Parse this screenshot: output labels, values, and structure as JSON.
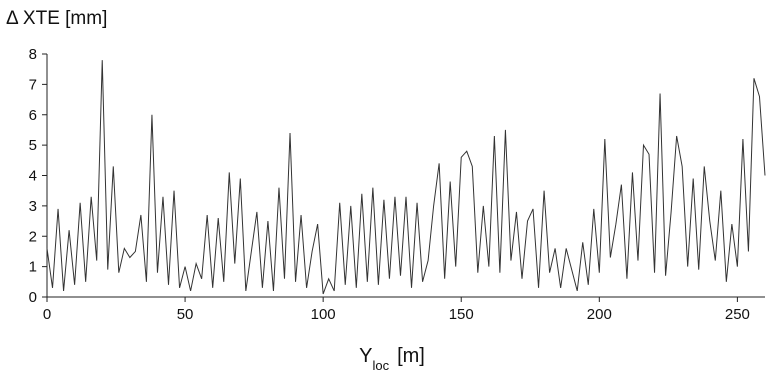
{
  "chart_data": {
    "type": "line",
    "ylabel": "Δ XTE [mm]",
    "xlabel": "Y",
    "xlabel_sub": "loc",
    "xlabel_unit": "[m]",
    "xlim": [
      0,
      260
    ],
    "ylim": [
      0,
      8
    ],
    "xticks": [
      0,
      50,
      100,
      150,
      200,
      250
    ],
    "yticks": [
      0,
      1,
      2,
      3,
      4,
      5,
      6,
      7,
      8
    ],
    "grid": false,
    "x": [
      0,
      2,
      4,
      6,
      8,
      10,
      12,
      14,
      16,
      18,
      20,
      22,
      24,
      26,
      28,
      30,
      32,
      34,
      36,
      38,
      40,
      42,
      44,
      46,
      48,
      50,
      52,
      54,
      56,
      58,
      60,
      62,
      64,
      66,
      68,
      70,
      72,
      74,
      76,
      78,
      80,
      82,
      84,
      86,
      88,
      90,
      92,
      94,
      96,
      98,
      100,
      102,
      104,
      106,
      108,
      110,
      112,
      114,
      116,
      118,
      120,
      122,
      124,
      126,
      128,
      130,
      132,
      134,
      136,
      138,
      140,
      142,
      144,
      146,
      148,
      150,
      152,
      154,
      156,
      158,
      160,
      162,
      164,
      166,
      168,
      170,
      172,
      174,
      176,
      178,
      180,
      182,
      184,
      186,
      188,
      190,
      192,
      194,
      196,
      198,
      200,
      202,
      204,
      206,
      208,
      210,
      212,
      214,
      216,
      218,
      220,
      222,
      224,
      226,
      228,
      230,
      232,
      234,
      236,
      238,
      240,
      242,
      244,
      246,
      248,
      250,
      252,
      254,
      256,
      258,
      260
    ],
    "series": [
      {
        "color": "#333333",
        "values": [
          1.6,
          0.3,
          2.9,
          0.2,
          2.2,
          0.4,
          3.1,
          0.5,
          3.3,
          1.2,
          7.8,
          0.9,
          4.3,
          0.8,
          1.6,
          1.3,
          1.5,
          2.7,
          0.5,
          6.0,
          0.8,
          3.3,
          0.4,
          3.5,
          0.3,
          1.0,
          0.2,
          1.1,
          0.6,
          2.7,
          0.3,
          2.6,
          0.5,
          4.1,
          1.1,
          3.9,
          0.2,
          1.5,
          2.8,
          0.3,
          2.5,
          0.2,
          3.6,
          0.6,
          5.4,
          0.5,
          2.7,
          0.3,
          1.5,
          2.4,
          0.1,
          0.6,
          0.2,
          3.1,
          0.4,
          3.0,
          0.3,
          3.4,
          0.5,
          3.6,
          0.4,
          3.2,
          0.6,
          3.3,
          0.7,
          3.3,
          0.3,
          3.1,
          0.5,
          1.2,
          3.0,
          4.4,
          0.6,
          3.8,
          1.0,
          4.6,
          4.8,
          4.3,
          0.8,
          3.0,
          1.0,
          5.3,
          0.8,
          5.5,
          1.2,
          2.8,
          0.6,
          2.5,
          2.9,
          0.3,
          3.5,
          0.8,
          1.6,
          0.3,
          1.6,
          0.9,
          0.2,
          1.8,
          0.4,
          2.9,
          0.8,
          5.2,
          1.3,
          2.4,
          3.7,
          0.6,
          4.1,
          1.2,
          5.0,
          4.7,
          0.8,
          6.7,
          0.7,
          2.8,
          5.3,
          4.3,
          1.0,
          3.9,
          0.9,
          4.3,
          2.5,
          1.2,
          3.5,
          0.5,
          2.4,
          1.0,
          5.2,
          1.5,
          7.2,
          6.6,
          4.0
        ]
      }
    ]
  }
}
